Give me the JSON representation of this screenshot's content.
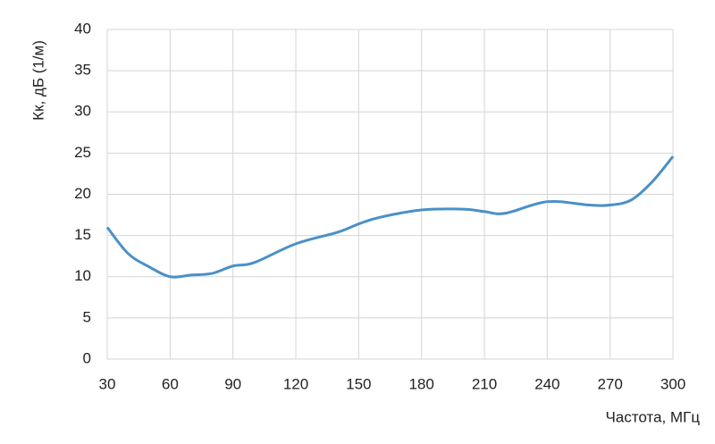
{
  "chart_data": {
    "type": "line",
    "x_label": "Частота, МГц",
    "y_label": "Кк, дБ (1/м)",
    "x": [
      30,
      40,
      50,
      60,
      70,
      80,
      90,
      100,
      120,
      140,
      150,
      160,
      180,
      200,
      210,
      220,
      240,
      260,
      270,
      280,
      290,
      300
    ],
    "series": [
      {
        "color": "#4a90c8",
        "values": [
          16,
          12.8,
          11.2,
          10,
          10.2,
          10.4,
          11.3,
          11.7,
          14,
          15.4,
          16.4,
          17.2,
          18.1,
          18.2,
          17.9,
          17.7,
          19.1,
          18.7,
          18.7,
          19.3,
          21.5,
          24.6
        ]
      }
    ],
    "xlim": [
      30,
      300
    ],
    "xticks": [
      30,
      60,
      90,
      120,
      150,
      180,
      210,
      240,
      270,
      300
    ],
    "ylim": [
      0,
      40
    ],
    "yticks": [
      0,
      5,
      10,
      15,
      20,
      25,
      30,
      35,
      40
    ],
    "grid": true
  }
}
